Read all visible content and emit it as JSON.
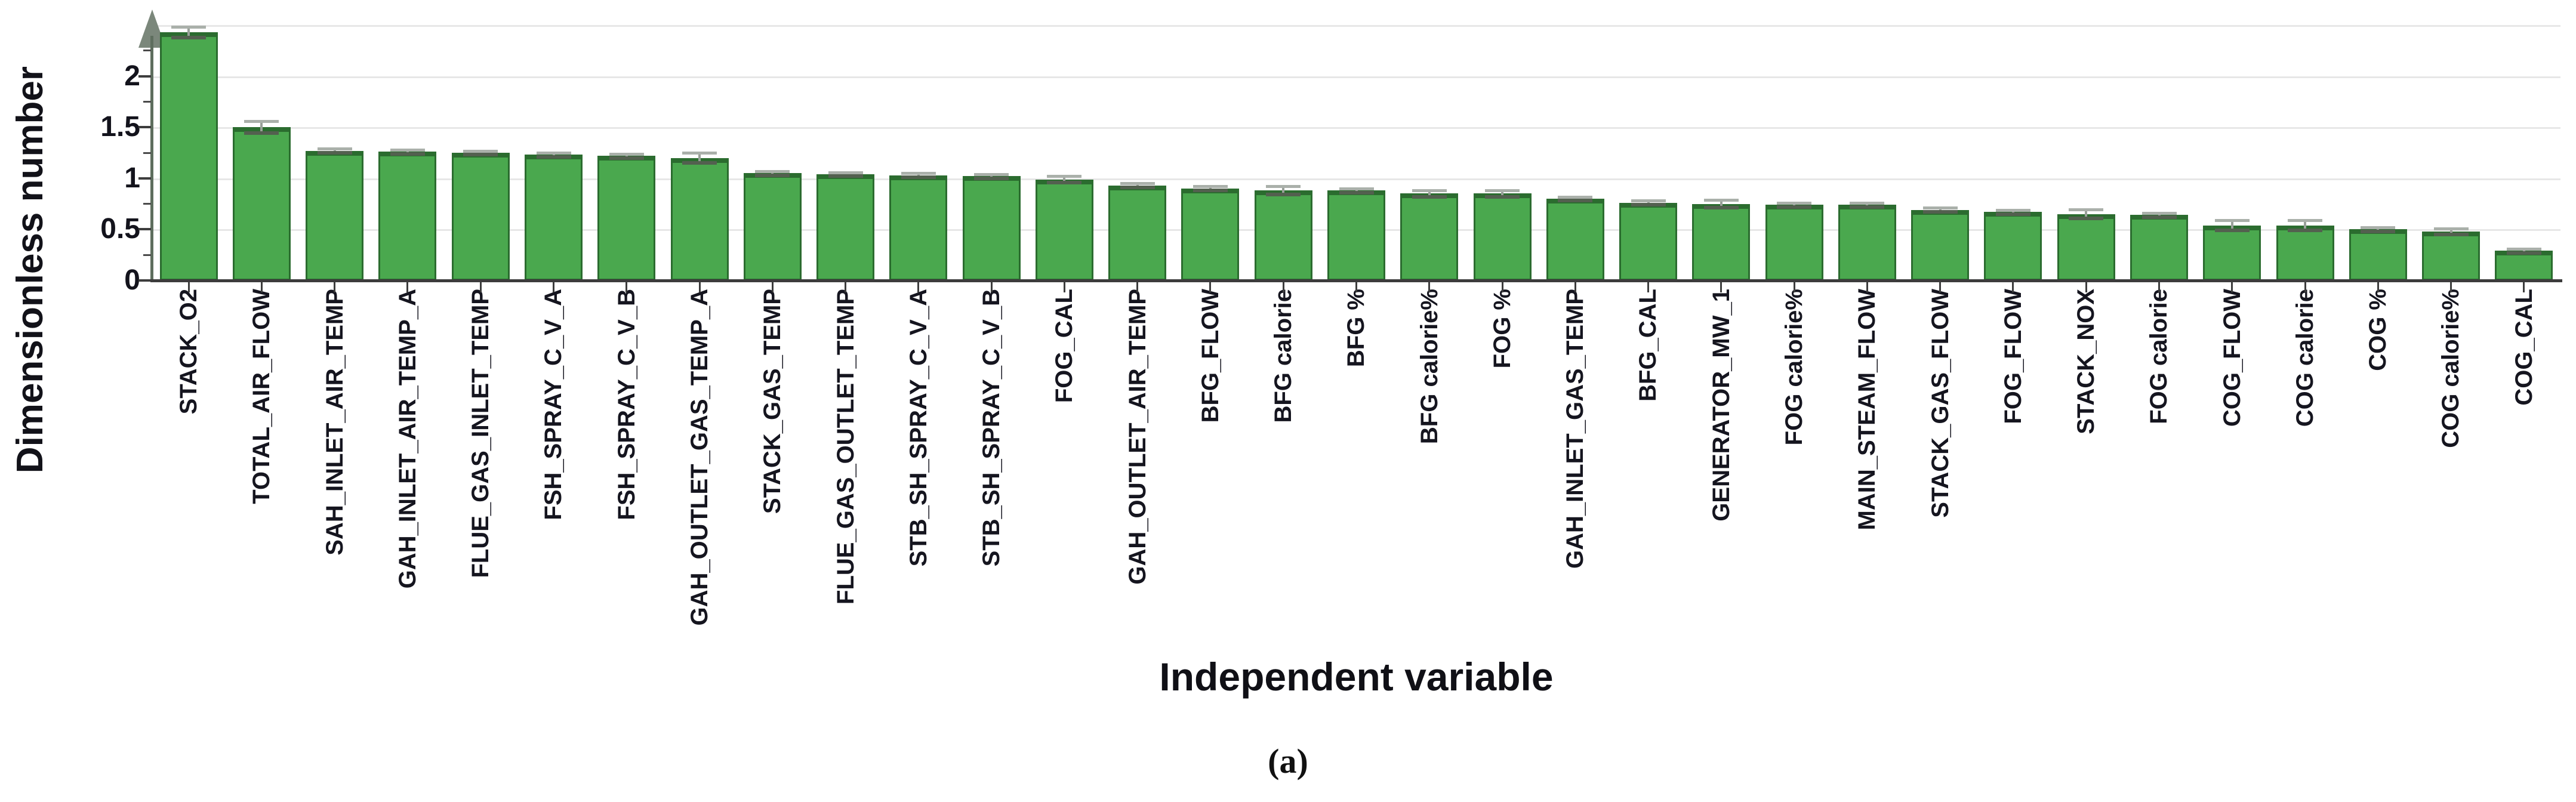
{
  "figure": {
    "caption": "(a)"
  },
  "chart_data": {
    "type": "bar",
    "title": "",
    "xlabel": "Independent variable",
    "ylabel": "Dimensionless number",
    "ylim": [
      0,
      2.5
    ],
    "y_ticks": [
      0,
      0.5,
      1,
      1.5,
      2
    ],
    "y_minor_ticks": [
      0.25,
      0.75,
      1.25,
      1.75,
      2.25
    ],
    "gridlines": [
      0.5,
      1,
      1.5,
      2,
      2.5
    ],
    "grid": "on",
    "legend": "none",
    "bar_color": "#4aa84e",
    "bar_edge_color": "#2b6c2f",
    "error_bar_color": "#99a099",
    "categories": [
      "STACK_O2",
      "TOTAL_AIR_FLOW",
      "SAH_INLET_AIR_TEMP",
      "GAH_INLET_AIR_TEMP_A",
      "FLUE_GAS_INLET_TEMP",
      "FSH_SPRAY_C_V_A",
      "FSH_SPRAY_C_V_B",
      "GAH_OUTLET_GAS_TEMP_A",
      "STACK_GAS_TEMP",
      "FLUE_GAS_OUTLET_TEMP",
      "STB_SH_SPRAY_C_V_A",
      "STB_SH_SPRAY_C_V_B",
      "FOG_CAL",
      "GAH_OUTLET_AIR_TEMP",
      "BFG_FLOW",
      "BFG calorie",
      "BFG %",
      "BFG calorie%",
      "FOG %",
      "GAH_INLET_GAS_TEMP",
      "BFG_CAL",
      "GENERATOR_MW_1",
      "FOG calorie%",
      "MAIN_STEAM_FLOW",
      "STACK_GAS_FLOW",
      "FOG_FLOW",
      "STACK_NOX",
      "FOG calorie",
      "COG_FLOW",
      "COG calorie",
      "COG %",
      "COG calorie%",
      "COG_CAL"
    ],
    "values": [
      2.43,
      1.5,
      1.27,
      1.26,
      1.25,
      1.23,
      1.22,
      1.2,
      1.05,
      1.04,
      1.03,
      1.02,
      0.99,
      0.93,
      0.9,
      0.88,
      0.88,
      0.85,
      0.85,
      0.8,
      0.76,
      0.75,
      0.74,
      0.74,
      0.69,
      0.67,
      0.65,
      0.64,
      0.54,
      0.54,
      0.5,
      0.48,
      0.29
    ],
    "errors": [
      0.05,
      0.06,
      0.02,
      0.02,
      0.02,
      0.02,
      0.02,
      0.05,
      0.02,
      0.02,
      0.02,
      0.02,
      0.03,
      0.02,
      0.02,
      0.04,
      0.02,
      0.03,
      0.03,
      0.02,
      0.02,
      0.04,
      0.02,
      0.02,
      0.02,
      0.02,
      0.045,
      0.02,
      0.05,
      0.05,
      0.02,
      0.03,
      0.02
    ]
  }
}
